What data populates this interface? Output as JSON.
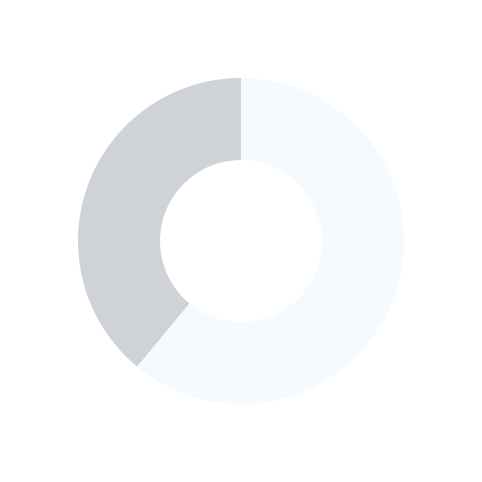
{
  "chart_data": {
    "type": "pie",
    "variant": "donut",
    "slices": [
      {
        "value": 61,
        "color": "#f5faff"
      },
      {
        "value": 39,
        "color": "#cfd2d6"
      }
    ],
    "start": "top",
    "direction": "clockwise",
    "legend": "none"
  }
}
